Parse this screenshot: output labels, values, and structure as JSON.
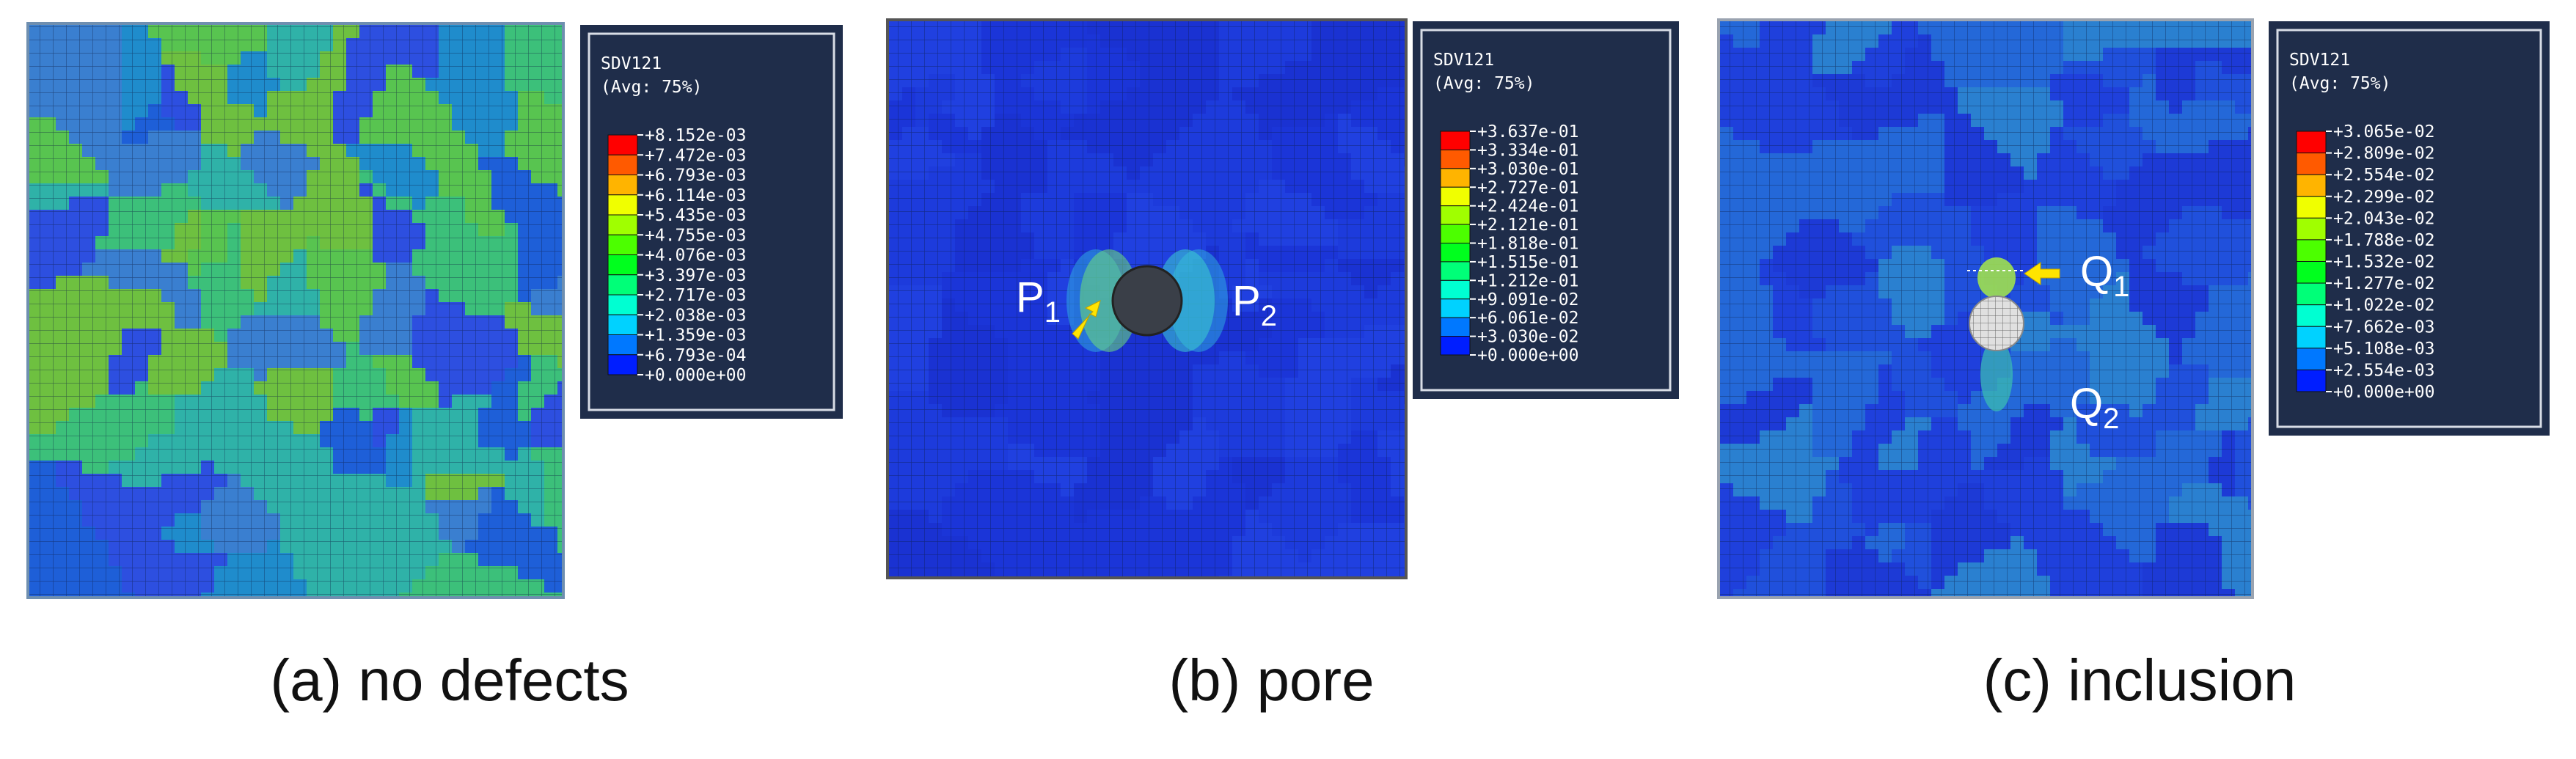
{
  "panels": [
    {
      "caption": "(a) no defects",
      "legend": {
        "title": "SDV121",
        "subtitle": "(Avg: 75%)",
        "labels": [
          "+8.152e-03",
          "+7.472e-03",
          "+6.793e-03",
          "+6.114e-03",
          "+5.435e-03",
          "+4.755e-03",
          "+4.076e-03",
          "+3.397e-03",
          "+2.717e-03",
          "+2.038e-03",
          "+1.359e-03",
          "+6.793e-04",
          "+0.000e+00"
        ]
      },
      "annotations": []
    },
    {
      "caption": "(b) pore",
      "legend": {
        "title": "SDV121",
        "subtitle": "(Avg: 75%)",
        "labels": [
          "+3.637e-01",
          "+3.334e-01",
          "+3.030e-01",
          "+2.727e-01",
          "+2.424e-01",
          "+2.121e-01",
          "+1.818e-01",
          "+1.515e-01",
          "+1.212e-01",
          "+9.091e-02",
          "+6.061e-02",
          "+3.030e-02",
          "+0.000e+00"
        ]
      },
      "annotations": [
        {
          "letter": "P",
          "sub": "1"
        },
        {
          "letter": "P",
          "sub": "2"
        }
      ]
    },
    {
      "caption": "(c) inclusion",
      "legend": {
        "title": "SDV121",
        "subtitle": "(Avg: 75%)",
        "labels": [
          "+3.065e-02",
          "+2.809e-02",
          "+2.554e-02",
          "+2.299e-02",
          "+2.043e-02",
          "+1.788e-02",
          "+1.532e-02",
          "+1.277e-02",
          "+1.022e-02",
          "+7.662e-03",
          "+5.108e-03",
          "+2.554e-03",
          "+0.000e+00"
        ]
      },
      "annotations": [
        {
          "letter": "Q",
          "sub": "1"
        },
        {
          "letter": "Q",
          "sub": "2"
        }
      ]
    }
  ]
}
